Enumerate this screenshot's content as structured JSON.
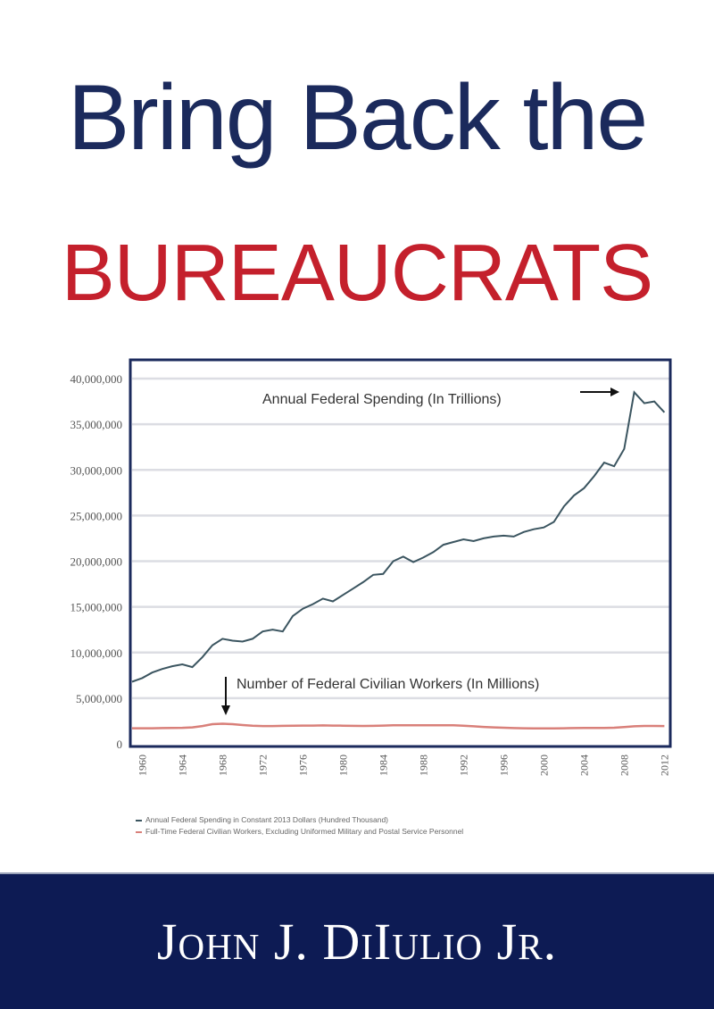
{
  "cover": {
    "title_line1": "Bring Back the",
    "title_line2": "BUREAUCRATS",
    "author": "John J. DiIulio Jr.",
    "colors": {
      "navy": "#1b2a5c",
      "red": "#c4202c",
      "author_band": "#0d1b54"
    }
  },
  "chart_data": {
    "type": "line",
    "title": "",
    "xlabel": "",
    "ylabel": "",
    "xlim": [
      1959,
      2012.5
    ],
    "ylim": [
      0,
      40000000
    ],
    "grid": true,
    "y_ticks": [
      "0",
      "5,000,000",
      "10,000,000",
      "15,000,000",
      "20,000,000",
      "25,000,000",
      "30,000,000",
      "35,000,000",
      "40,000,000"
    ],
    "x_ticks": [
      "1960",
      "1964",
      "1968",
      "1972",
      "1976",
      "1980",
      "1984",
      "1988",
      "1992",
      "1996",
      "2000",
      "2004",
      "2008",
      "2012"
    ],
    "x": [
      1959,
      1960,
      1961,
      1962,
      1963,
      1964,
      1965,
      1966,
      1967,
      1968,
      1969,
      1970,
      1971,
      1972,
      1973,
      1974,
      1975,
      1976,
      1977,
      1978,
      1979,
      1980,
      1981,
      1982,
      1983,
      1984,
      1985,
      1986,
      1987,
      1988,
      1989,
      1990,
      1991,
      1992,
      1993,
      1994,
      1995,
      1996,
      1997,
      1998,
      1999,
      2000,
      2001,
      2002,
      2003,
      2004,
      2005,
      2006,
      2007,
      2008,
      2009,
      2010,
      2011,
      2012
    ],
    "series": [
      {
        "name": "Annual Federal Spending in Constant 2013 Dollars (Hundred Thousand)",
        "color": "#3b5560",
        "values": [
          6800000,
          7200000,
          7800000,
          8200000,
          8500000,
          8700000,
          8400000,
          9500000,
          10800000,
          11500000,
          11300000,
          11200000,
          11500000,
          12300000,
          12500000,
          12300000,
          14000000,
          14800000,
          15300000,
          15900000,
          15600000,
          16300000,
          17000000,
          17700000,
          18500000,
          18600000,
          20000000,
          20500000,
          19900000,
          20400000,
          21000000,
          21800000,
          22100000,
          22400000,
          22200000,
          22500000,
          22700000,
          22800000,
          22700000,
          23200000,
          23500000,
          23700000,
          24300000,
          26000000,
          27200000,
          28000000,
          29300000,
          30800000,
          30400000,
          32300000,
          38500000,
          37300000,
          37500000,
          36300000
        ]
      },
      {
        "name": "Full-Time Federal Civilian Workers, Excluding Uniformed Military and Postal Service Personnel",
        "color": "#d9807a",
        "values": [
          1700000,
          1700000,
          1700000,
          1720000,
          1730000,
          1750000,
          1800000,
          1950000,
          2150000,
          2200000,
          2150000,
          2050000,
          1980000,
          1950000,
          1950000,
          1970000,
          1980000,
          2000000,
          2000000,
          2010000,
          2000000,
          1990000,
          1970000,
          1960000,
          1970000,
          2000000,
          2020000,
          2020000,
          2020000,
          2020000,
          2030000,
          2030000,
          2020000,
          1990000,
          1920000,
          1850000,
          1800000,
          1760000,
          1720000,
          1700000,
          1690000,
          1680000,
          1690000,
          1700000,
          1720000,
          1730000,
          1730000,
          1740000,
          1760000,
          1830000,
          1920000,
          1960000,
          1960000,
          1950000
        ]
      }
    ],
    "annotations": [
      "Annual Federal Spending (In Trillions)",
      "Number of Federal Civilian Workers (In Millions)"
    ],
    "legend": {
      "placement": "bottom-left",
      "entries": [
        "Annual Federal Spending in Constant 2013 Dollars (Hundred Thousand)",
        "Full-Time Federal Civilian Workers, Excluding Uniformed Military and Postal Service Personnel"
      ]
    }
  }
}
